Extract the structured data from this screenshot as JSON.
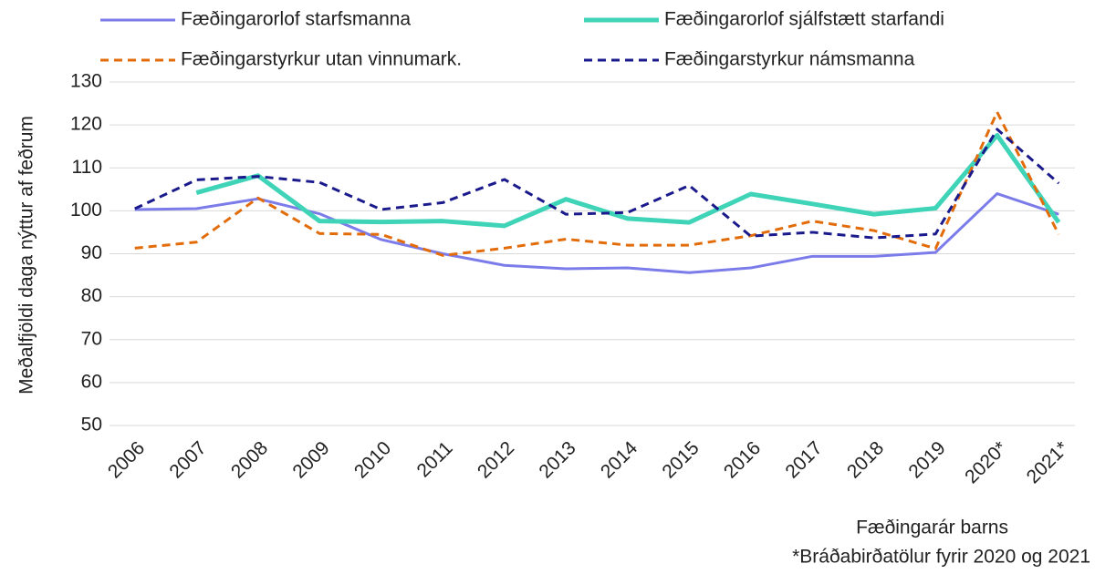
{
  "chart_data": {
    "type": "line",
    "y_label": "Meðalfjöldi daga nýttur af feðrum",
    "x_label": "Fæðingarár barns",
    "note": "*Bráðabirðatölur fyrir 2020 og 2021",
    "categories": [
      "2006",
      "2007",
      "2008",
      "2009",
      "2010",
      "2011",
      "2012",
      "2013",
      "2014",
      "2015",
      "2016",
      "2017",
      "2018",
      "2019",
      "2020*",
      "2021*"
    ],
    "series": [
      {
        "name": "Fæðingarorlof starfsmanna",
        "color": "#7b7bea",
        "dashed": false,
        "width": 3,
        "values": [
          100.3,
          100.5,
          102.8,
          99.3,
          93.3,
          90.0,
          87.3,
          86.5,
          86.7,
          85.6,
          86.7,
          89.4,
          89.4,
          90.3,
          104.0,
          99.2
        ]
      },
      {
        "name": "Fæðingarorlof sjálfstætt starfandi",
        "color": "#3fd4b8",
        "dashed": false,
        "width": 5,
        "values": [
          null,
          104.2,
          108.2,
          97.6,
          97.4,
          97.6,
          96.5,
          102.7,
          98.2,
          97.3,
          103.9,
          101.6,
          99.2,
          100.6,
          117.6,
          97.3
        ]
      },
      {
        "name": "Fæðingarstyrkur utan vinnumark.",
        "color": "#e36c0a",
        "dashed": true,
        "width": 3,
        "values": [
          91.3,
          92.7,
          103.0,
          94.7,
          94.5,
          89.6,
          91.3,
          93.4,
          92.0,
          92.0,
          94.2,
          97.6,
          95.4,
          91.2,
          123.0,
          94.5
        ]
      },
      {
        "name": "Fæðingarstyrkur námsmanna",
        "color": "#1a1a8c",
        "dashed": true,
        "width": 3,
        "values": [
          100.5,
          107.2,
          108.0,
          106.6,
          100.3,
          101.9,
          107.3,
          99.2,
          99.6,
          105.9,
          94.1,
          95.0,
          93.7,
          94.6,
          119.0,
          106.4
        ]
      }
    ],
    "ylim": [
      50,
      130
    ],
    "yticks": [
      50,
      60,
      70,
      80,
      90,
      100,
      110,
      120,
      130
    ],
    "grid": true
  }
}
